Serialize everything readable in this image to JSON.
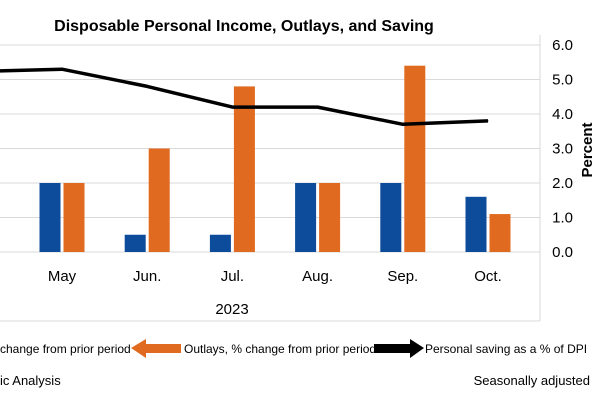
{
  "chart_data": {
    "type": "bar",
    "title": "Disposable Personal Income, Outlays, and Saving",
    "categories": [
      "May",
      "Jun.",
      "Jul.",
      "Aug.",
      "Sep.",
      "Oct."
    ],
    "year_label": "2023",
    "series": [
      {
        "name": "change from prior period",
        "kind": "bar",
        "color": "#0d4b9b",
        "values": [
          2.0,
          0.5,
          0.5,
          2.0,
          2.0,
          1.6
        ]
      },
      {
        "name": "Outlays, % change from prior period",
        "kind": "bar",
        "color": "#e06a1f",
        "values": [
          2.0,
          3.0,
          4.8,
          2.0,
          5.4,
          1.1
        ]
      },
      {
        "name": "Personal saving as a % of DPI",
        "kind": "line",
        "color": "#000000",
        "values": [
          5.3,
          4.8,
          4.2,
          4.2,
          3.7,
          3.8
        ]
      }
    ],
    "ylabel_right": "Percent",
    "ylim": [
      0,
      6
    ],
    "yticks": [
      "6.0",
      "5.0",
      "4.0",
      "3.0",
      "2.0",
      "1.0",
      "0.0"
    ],
    "grid": true
  },
  "footer": {
    "left": "ic Analysis",
    "right": "Seasonally adjusted"
  }
}
